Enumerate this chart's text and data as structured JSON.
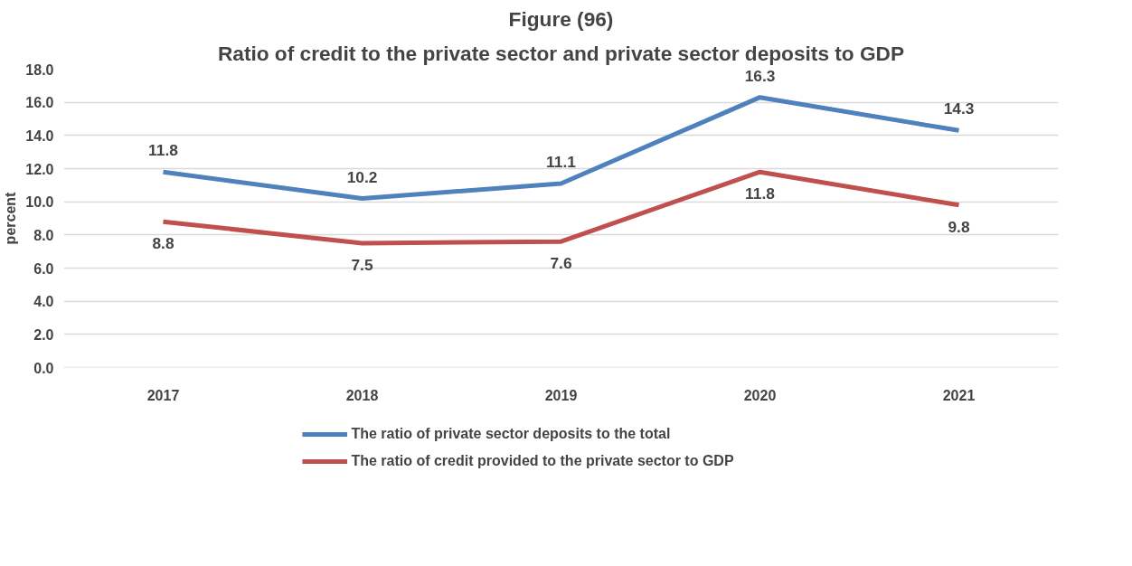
{
  "chart_data": {
    "type": "line",
    "title": "Figure (96)",
    "subtitle": "Ratio of credit to the private sector and private sector deposits to GDP",
    "ylabel": "percent",
    "categories": [
      "2017",
      "2018",
      "2019",
      "2020",
      "2021"
    ],
    "series": [
      {
        "name": "The ratio of private sector deposits to the total",
        "color": "#4f81bd",
        "values": [
          11.8,
          10.2,
          11.1,
          16.3,
          14.3
        ]
      },
      {
        "name": "The ratio of credit provided to the private sector to GDP",
        "color": "#c0504d",
        "values": [
          8.8,
          7.5,
          7.6,
          11.8,
          9.8
        ]
      }
    ],
    "ylim": [
      0,
      18
    ],
    "yticks": [
      {
        "value": 0,
        "label": "0.0"
      },
      {
        "value": 2,
        "label": "2.0"
      },
      {
        "value": 4,
        "label": "4.0"
      },
      {
        "value": 6,
        "label": "6.0"
      },
      {
        "value": 8,
        "label": "8.0"
      },
      {
        "value": 10,
        "label": "10.0"
      },
      {
        "value": 12,
        "label": "12.0"
      },
      {
        "value": 14,
        "label": "14.0"
      },
      {
        "value": 16,
        "label": "16.0"
      },
      {
        "value": 18,
        "label": "18.0"
      }
    ],
    "grid": "y",
    "legend": "bottom",
    "data_labels": true,
    "marker": "none",
    "line_style": "solid"
  }
}
